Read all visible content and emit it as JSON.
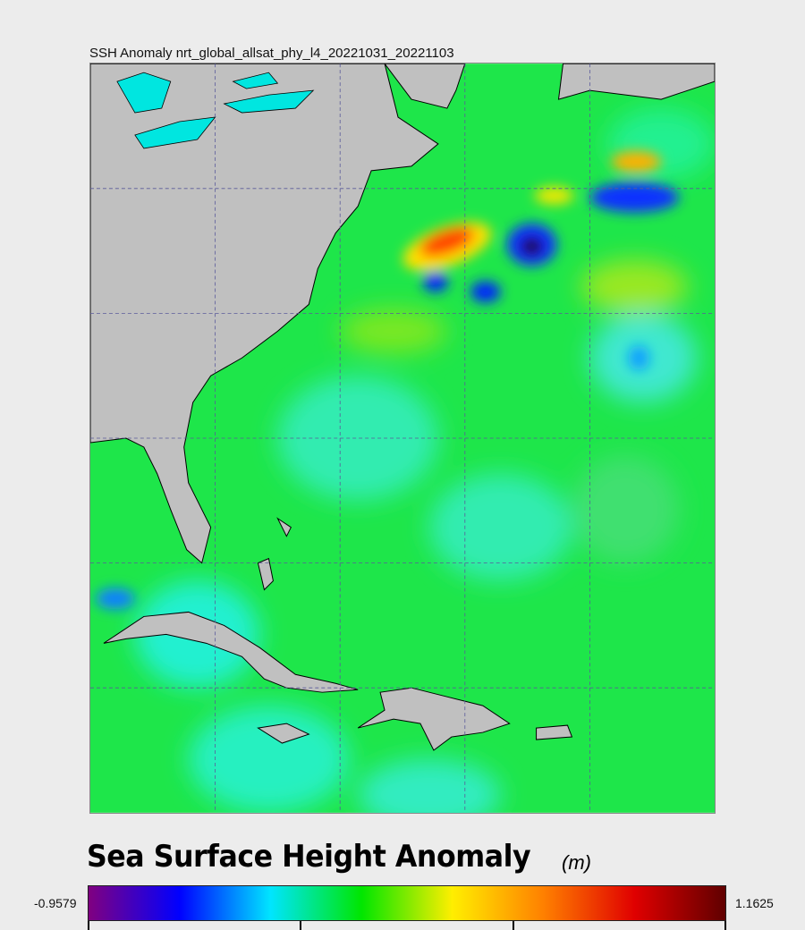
{
  "map": {
    "title": "SSH Anomaly nrt_global_allsat_phy_l4_20221031_20221103",
    "ocean_base_color": "#1ee64a",
    "land_color": "#c0c0c0",
    "grid_color": "#5a5a9a"
  },
  "colorbar": {
    "title": "Sea Surface Height Anomaly",
    "units": "(m)",
    "min_label": "-0.9579",
    "max_label": "1.1625",
    "colors": [
      "#800080",
      "#0000ff",
      "#00e5ff",
      "#00e600",
      "#ffee00",
      "#ff8000",
      "#e00000",
      "#600000"
    ]
  }
}
